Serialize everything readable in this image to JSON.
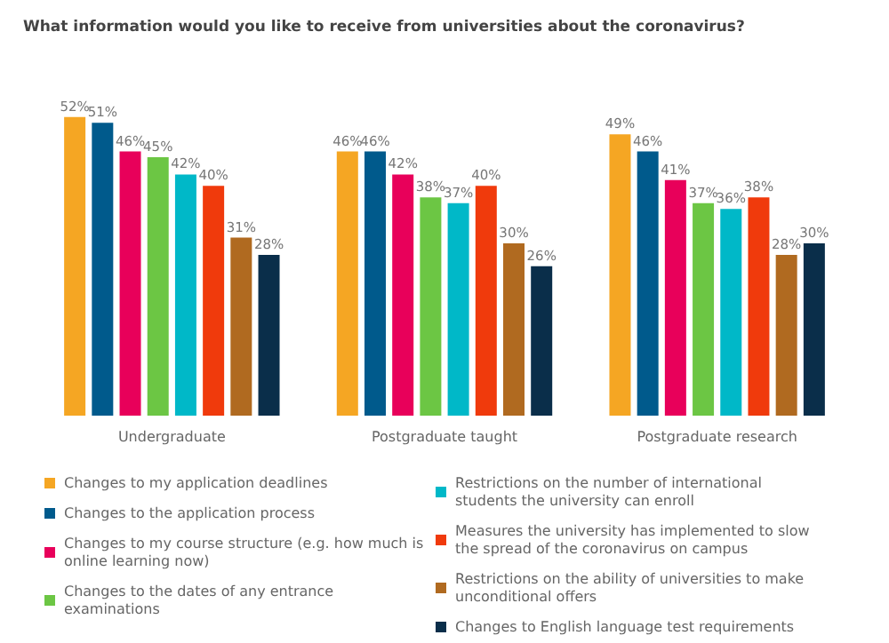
{
  "chart_data": {
    "type": "bar",
    "title": "What information would you like to receive from universities about the coronavirus?",
    "categories": [
      "Undergraduate",
      "Postgraduate taught",
      "Postgraduate research"
    ],
    "series": [
      {
        "name": "Changes to my application deadlines",
        "color": "#f5a623",
        "values": [
          52,
          46,
          49
        ],
        "value_labels": [
          "52%",
          "46%",
          "49%"
        ]
      },
      {
        "name": "Changes to the application process",
        "color": "#005a8c",
        "values": [
          51,
          46,
          46
        ],
        "value_labels": [
          "51%",
          "46%",
          "46%"
        ]
      },
      {
        "name": "Changes to my course structure (e.g. how much is online learning now)",
        "color": "#e8005a",
        "values": [
          46,
          42,
          41
        ],
        "value_labels": [
          "46%",
          "42%",
          "41%"
        ]
      },
      {
        "name": "Changes to the dates of any entrance examinations",
        "color": "#6cc644",
        "values": [
          45,
          38,
          37
        ],
        "value_labels": [
          "45%",
          "38%",
          "37%"
        ]
      },
      {
        "name": "Restrictions on the number of international students the university can enroll",
        "color": "#00b8c8",
        "values": [
          42,
          37,
          36
        ],
        "value_labels": [
          "42%",
          "37%",
          "36%"
        ]
      },
      {
        "name": "Measures the university has implemented to slow the spread of the coronavirus on campus",
        "color": "#f03a0c",
        "values": [
          40,
          40,
          38
        ],
        "value_labels": [
          "40%",
          "40%",
          "38%"
        ]
      },
      {
        "name": "Restrictions on the ability of universities to make unconditional offers",
        "color": "#b06a20",
        "values": [
          31,
          30,
          28
        ],
        "value_labels": [
          "31%",
          "30%",
          "28%"
        ]
      },
      {
        "name": "Changes to English language test requirements",
        "color": "#0a2e4a",
        "values": [
          28,
          26,
          30
        ],
        "value_labels": [
          "28%",
          "26%",
          "30%"
        ]
      }
    ],
    "legend": "bottom"
  }
}
